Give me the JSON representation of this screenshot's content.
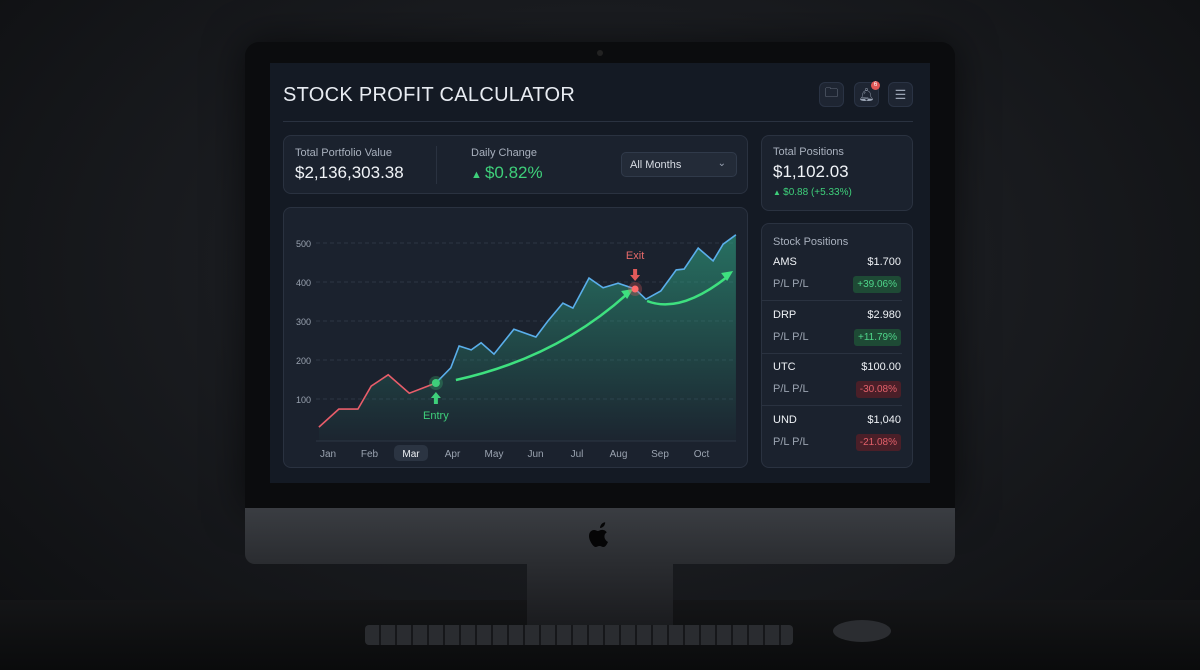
{
  "app": {
    "title": "STOCK PROFIT CALCULATOR",
    "notification_count": "6"
  },
  "icons": {
    "folder": "folder-settings-icon",
    "bell": "bell-icon",
    "menu": "hamburger-menu-icon",
    "apple": "apple-logo-icon"
  },
  "summary": {
    "portfolio_label": "Total Portfolio Value",
    "portfolio_value": "$2,136,303.38",
    "daily_label": "Daily Change",
    "daily_value": "$0.82%",
    "period_select": "All Months"
  },
  "total_positions": {
    "label": "Total Positions",
    "value": "$1,102.03",
    "change": "$0.88 (+5.33%)"
  },
  "stock_positions": {
    "title": "Stock Positions",
    "items": [
      {
        "symbol": "AMS",
        "price": "$1.700",
        "pl_label": "P/L P/L",
        "pl": "+39.06%",
        "trend": "up"
      },
      {
        "symbol": "DRP",
        "price": "$2.980",
        "pl_label": "P/L P/L",
        "pl": "+11.79%",
        "trend": "up"
      },
      {
        "symbol": "UTC",
        "price": "$100.00",
        "pl_label": "P/L P/L",
        "pl": "-30.08%",
        "trend": "down"
      },
      {
        "symbol": "UND",
        "price": "$1,040",
        "pl_label": "P/L P/L",
        "pl": "-21.08%",
        "trend": "down"
      }
    ]
  },
  "colors": {
    "up": "#3ecf7a",
    "down": "#e05a5a",
    "line_pre": "#e85d6a",
    "line_post": "#5aaeea",
    "area": "#2fa584"
  },
  "chart_data": {
    "type": "area",
    "ylim": [
      0,
      520
    ],
    "yticks": [
      "100",
      "200",
      "300",
      "400",
      "500"
    ],
    "categories": [
      "Jan",
      "Feb",
      "Mar",
      "Apr",
      "May",
      "Jun",
      "Jul",
      "Aug",
      "Sep",
      "Oct"
    ],
    "selected_category": "Mar",
    "grid": true,
    "annotations": [
      {
        "label": "Entry",
        "x": 3.6,
        "y": 141
      },
      {
        "label": "Exit",
        "x": 8.4,
        "y": 382
      }
    ],
    "points": [
      [
        0.78,
        28
      ],
      [
        1.26,
        74
      ],
      [
        1.72,
        74
      ],
      [
        2.04,
        133
      ],
      [
        2.45,
        162
      ],
      [
        2.96,
        115
      ],
      [
        3.6,
        141
      ],
      [
        3.96,
        180
      ],
      [
        4.16,
        236
      ],
      [
        4.45,
        226
      ],
      [
        4.69,
        244
      ],
      [
        5.0,
        215
      ],
      [
        5.48,
        279
      ],
      [
        6.01,
        259
      ],
      [
        6.3,
        300
      ],
      [
        6.66,
        346
      ],
      [
        6.9,
        333
      ],
      [
        7.29,
        410
      ],
      [
        7.63,
        385
      ],
      [
        7.99,
        397
      ],
      [
        8.4,
        382
      ],
      [
        8.66,
        356
      ],
      [
        9.02,
        377
      ],
      [
        9.39,
        431
      ],
      [
        9.58,
        433
      ],
      [
        9.92,
        487
      ],
      [
        10.28,
        454
      ],
      [
        10.52,
        497
      ],
      [
        10.83,
        521
      ]
    ]
  }
}
